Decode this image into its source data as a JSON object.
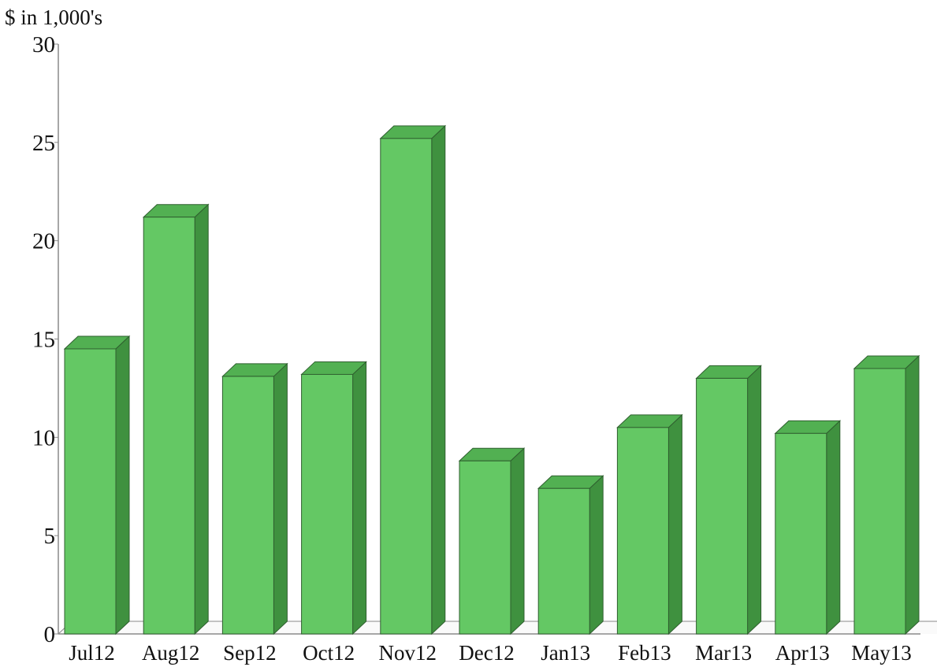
{
  "chart_data": {
    "type": "bar",
    "title": "",
    "xlabel": "",
    "ylabel": "$ in 1,000's",
    "categories": [
      "Jul12",
      "Aug12",
      "Sep12",
      "Oct12",
      "Nov12",
      "Dec12",
      "Jan13",
      "Feb13",
      "Mar13",
      "Apr13",
      "May13"
    ],
    "values": [
      14.5,
      21.2,
      13.1,
      13.2,
      25.2,
      8.8,
      7.4,
      10.5,
      13.0,
      10.2,
      13.5
    ],
    "yticks": [
      "0",
      "5",
      "10",
      "15",
      "20",
      "25",
      "30"
    ],
    "ylim": [
      0,
      30
    ],
    "grid": false,
    "legend": "none",
    "bar_style": "3d",
    "colors": {
      "bar_front": "#64c864",
      "bar_side": "#3f913f",
      "bar_top": "#52b052",
      "bar_edge": "#2f5f2f",
      "axis": "#8a8a8a"
    }
  }
}
